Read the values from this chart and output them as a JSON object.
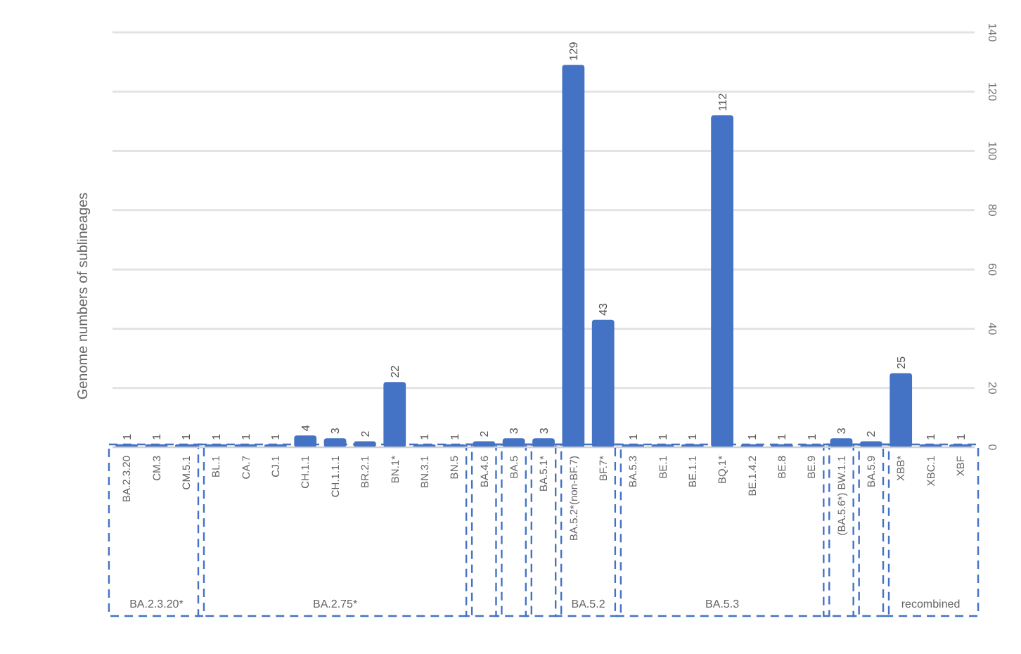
{
  "chart_data": {
    "type": "bar",
    "ylabel": "Genome numbers of sublineages",
    "categories": [
      "BA.2.3.20",
      "CM.3",
      "CM.5.1",
      "BL.1",
      "CA.7",
      "CJ.1",
      "CH.1.1",
      "CH.1.1.1",
      "BR.2.1",
      "BN.1*",
      "BN.3.1",
      "BN.5",
      "BA.4.6",
      "BA.5",
      "BA.5.1*",
      "BA.5.2*(non-BF.7)",
      "BF.7*",
      "BA.5.3",
      "BE.1",
      "BE.1.1",
      "BQ.1*",
      "BE.1.4.2",
      "BE.8",
      "BE.9",
      "(BA.5.6*) BW.1.1",
      "BA.5.9",
      "XBB*",
      "XBC.1",
      "XBF"
    ],
    "values": [
      1,
      1,
      1,
      1,
      1,
      1,
      4,
      3,
      2,
      22,
      1,
      1,
      2,
      3,
      3,
      129,
      43,
      1,
      1,
      1,
      112,
      1,
      1,
      1,
      3,
      2,
      25,
      1,
      1
    ],
    "color": "#4472c4",
    "ylim": [
      0,
      140
    ],
    "yticks": [
      0,
      20,
      40,
      60,
      80,
      100,
      120,
      140
    ],
    "grid": "y",
    "data_labels": true,
    "annotations": [
      "BA.2.3.20*",
      "BA.2.75*",
      "BA.5.2",
      "BA.5.3",
      "recombined"
    ]
  }
}
